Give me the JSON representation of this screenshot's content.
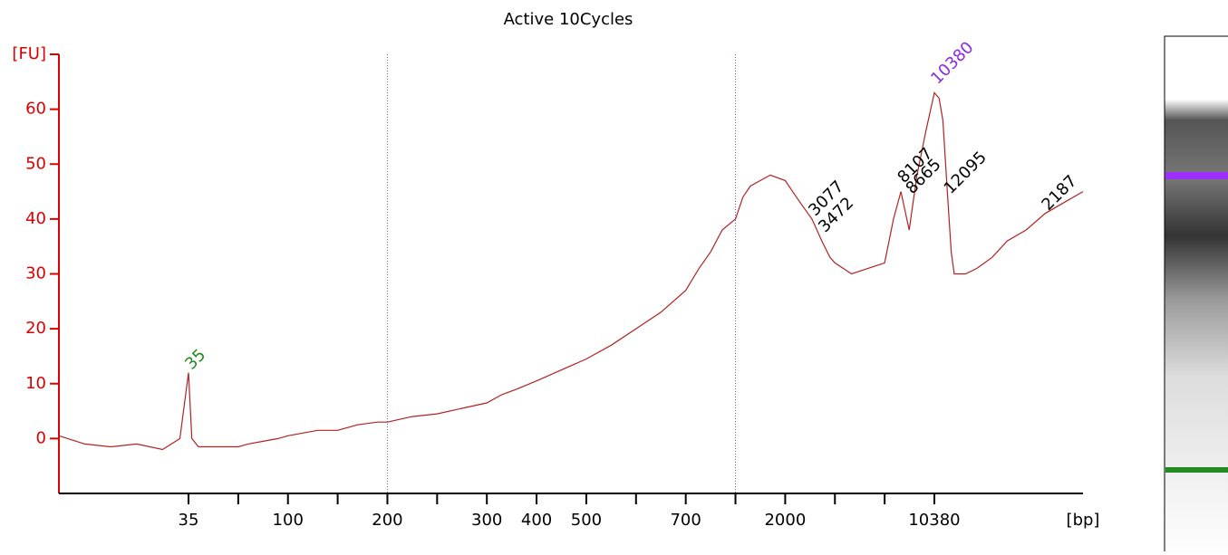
{
  "chart_data": {
    "type": "line",
    "title": "Active 10Cycles",
    "x_label": "[bp]",
    "xlim": [
      20,
      30000
    ],
    "xticks": [
      35,
      {
        "value": 50,
        "label": null
      },
      100,
      {
        "value": 150,
        "label": null
      },
      200,
      {
        "value": 250,
        "label": null
      },
      300,
      400,
      500,
      {
        "value": 600,
        "label": null
      },
      700,
      {
        "value": 1000,
        "label": null
      },
      2000,
      {
        "value": 4000,
        "label": null
      },
      {
        "value": 7000,
        "label": null
      },
      10380
    ],
    "ylim": [
      -10,
      70
    ],
    "yticks": [
      0,
      10,
      20,
      30,
      40,
      50,
      60,
      {
        "value": 70,
        "label": "[FU]"
      }
    ],
    "axis_color": "#dd0000",
    "series": [
      {
        "color": "#b22222",
        "x": [
          20,
          23,
          26,
          29,
          32,
          34,
          35,
          36,
          38,
          42,
          46,
          50,
          60,
          75,
          90,
          100,
          115,
          130,
          150,
          170,
          190,
          200,
          225,
          250,
          275,
          300,
          330,
          360,
          400,
          450,
          500,
          550,
          600,
          650,
          700,
          780,
          850,
          920,
          1000,
          1150,
          1300,
          1500,
          1700,
          2000,
          2300,
          2600,
          3077,
          3472,
          3800,
          4000,
          5000,
          6000,
          7000,
          7600,
          8107,
          8665,
          9200,
          9800,
          10380,
          11000,
          11500,
          12095,
          12600,
          13000,
          14500,
          16000,
          18000,
          20000,
          22500,
          25000,
          27500,
          30000
        ],
        "values": [
          0.5,
          -1,
          -1.5,
          -1,
          -2,
          0,
          12,
          0,
          -1.5,
          -1.5,
          -1.5,
          -1.5,
          -1,
          -0.5,
          0,
          0.5,
          1,
          1.5,
          1.5,
          2.5,
          3,
          3,
          4,
          4.5,
          5.5,
          6.5,
          8,
          9,
          10.5,
          12.5,
          14.5,
          17,
          20,
          23,
          27,
          31,
          34,
          38,
          40,
          44,
          46,
          47,
          48,
          47,
          45,
          43,
          40,
          36,
          33,
          32,
          30,
          31,
          32,
          40,
          45,
          38,
          48,
          56,
          63,
          62,
          58,
          45,
          34,
          30,
          30,
          31,
          33,
          36,
          38,
          41,
          43,
          45
        ]
      }
    ],
    "peaks": [
      {
        "label": "35",
        "x": 35,
        "y": 13,
        "color": "#228b22"
      },
      {
        "label": "3077",
        "x": 3077,
        "y": 41,
        "color": "#000000"
      },
      {
        "label": "3472",
        "x": 3472,
        "y": 38,
        "color": "#000000"
      },
      {
        "label": "8107",
        "x": 8107,
        "y": 47,
        "color": "#000000"
      },
      {
        "label": "8665",
        "x": 8665,
        "y": 45,
        "color": "#000000"
      },
      {
        "label": "10380",
        "x": 10380,
        "y": 65,
        "color": "#8a2be2"
      },
      {
        "label": "12095",
        "x": 12095,
        "y": 45,
        "color": "#000000"
      },
      {
        "label": "2187",
        "x": 25000,
        "y": 42,
        "color": "#000000"
      }
    ]
  }
}
